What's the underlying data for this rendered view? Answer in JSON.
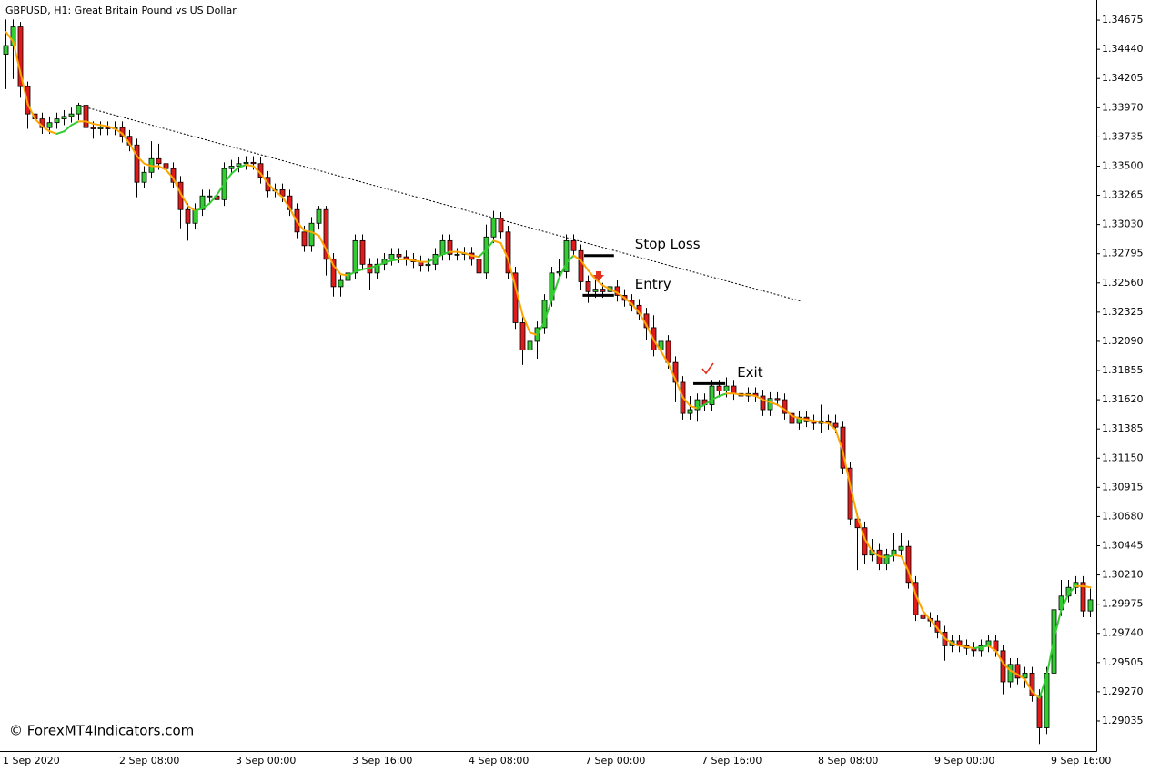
{
  "chart_data": {
    "type": "candlestick",
    "title": "GBPUSD, H1:  Great Britain Pound vs US Dollar",
    "categories": [
      "1 Sep 2020",
      null,
      null,
      null,
      null,
      null,
      null,
      null,
      null,
      null,
      null,
      null,
      null,
      null,
      null,
      null,
      "2 Sep 08:00",
      null,
      null,
      null,
      null,
      null,
      null,
      null,
      null,
      null,
      null,
      null,
      null,
      null,
      null,
      null,
      "3 Sep 00:00",
      null,
      null,
      null,
      null,
      null,
      null,
      null,
      null,
      null,
      null,
      null,
      null,
      null,
      null,
      null,
      "3 Sep 16:00",
      null,
      null,
      null,
      null,
      null,
      null,
      null,
      null,
      null,
      null,
      null,
      null,
      null,
      null,
      null,
      "4 Sep 08:00",
      null,
      null,
      null,
      null,
      null,
      null,
      null,
      null,
      null,
      null,
      null,
      null,
      null,
      null,
      null,
      "7 Sep 00:00",
      null,
      null,
      null,
      null,
      null,
      null,
      null,
      null,
      null,
      null,
      null,
      null,
      null,
      null,
      null,
      "7 Sep 16:00",
      null,
      null,
      null,
      null,
      null,
      null,
      null,
      null,
      null,
      null,
      null,
      null,
      null,
      null,
      null,
      "8 Sep 08:00",
      null,
      null,
      null,
      null,
      null,
      null,
      null,
      null,
      null,
      null,
      null,
      null,
      null,
      null,
      null,
      "9 Sep 00:00",
      null,
      null,
      null,
      null,
      null,
      null,
      null,
      null,
      null,
      null,
      null,
      null,
      null,
      null,
      null,
      "9 Sep 16:00",
      null,
      null,
      null,
      null,
      null
    ],
    "open": [
      1.344,
      1.3447,
      1.3462,
      1.3414,
      1.3392,
      1.3388,
      1.3381,
      1.3385,
      1.3388,
      1.339,
      1.3392,
      1.3399,
      1.3381,
      1.338,
      1.3381,
      1.338,
      1.3381,
      1.3374,
      1.3367,
      1.3337,
      1.3345,
      1.3356,
      1.3352,
      1.3348,
      1.3337,
      1.3315,
      1.3304,
      1.3315,
      1.3326,
      1.3326,
      1.3323,
      1.3348,
      1.335,
      1.3352,
      1.3353,
      1.3352,
      1.3341,
      1.333,
      1.3331,
      1.3326,
      1.3315,
      1.3297,
      1.3286,
      1.3304,
      1.3315,
      1.3275,
      1.3253,
      1.3258,
      1.3264,
      1.329,
      1.3271,
      1.3264,
      1.3271,
      1.3275,
      1.3279,
      1.3277,
      1.3275,
      1.3273,
      1.327,
      1.3271,
      1.3279,
      1.329,
      1.3279,
      1.3279,
      1.328,
      1.3275,
      1.3264,
      1.3293,
      1.3308,
      1.3297,
      1.3264,
      1.3224,
      1.3202,
      1.3209,
      1.322,
      1.3242,
      1.3264,
      1.3265,
      1.329,
      1.3282,
      1.3257,
      1.3249,
      1.3251,
      1.3249,
      1.3253,
      1.3246,
      1.3242,
      1.3238,
      1.3231,
      1.322,
      1.3202,
      1.3209,
      1.3192,
      1.3176,
      1.3151,
      1.3154,
      1.3162,
      1.3158,
      1.3173,
      1.3169,
      1.3173,
      1.3167,
      1.3165,
      1.3167,
      1.3165,
      1.3154,
      1.3163,
      1.3162,
      1.3151,
      1.3143,
      1.3148,
      1.3145,
      1.3143,
      1.3145,
      1.3143,
      1.314,
      1.3107,
      1.3066,
      1.3059,
      1.3037,
      1.3041,
      1.303,
      1.3037,
      1.3041,
      1.3044,
      1.3015,
      1.2989,
      1.2986,
      1.2984,
      1.2975,
      1.2964,
      1.2968,
      1.2964,
      1.2962,
      1.296,
      1.2964,
      1.2968,
      1.296,
      1.2935,
      1.2949,
      1.2938,
      1.2942,
      1.2924,
      1.2898,
      1.2942,
      1.2993,
      1.3004,
      1.3011,
      1.3015,
      1.2992
    ],
    "high": [
      1.3468,
      1.3468,
      1.3466,
      1.3418,
      1.3397,
      1.3393,
      1.339,
      1.3393,
      1.3395,
      1.3397,
      1.3401,
      1.3401,
      1.3386,
      1.3386,
      1.3386,
      1.3386,
      1.3386,
      1.3379,
      1.3372,
      1.335,
      1.337,
      1.3368,
      1.3362,
      1.3353,
      1.3342,
      1.332,
      1.332,
      1.3331,
      1.3331,
      1.3331,
      1.3353,
      1.3355,
      1.3357,
      1.3358,
      1.3358,
      1.3357,
      1.3346,
      1.3336,
      1.3336,
      1.3331,
      1.332,
      1.3302,
      1.3309,
      1.3318,
      1.3318,
      1.328,
      1.3263,
      1.3269,
      1.3295,
      1.3295,
      1.3276,
      1.3276,
      1.328,
      1.3284,
      1.3284,
      1.3282,
      1.328,
      1.3278,
      1.3276,
      1.3284,
      1.3295,
      1.3295,
      1.3284,
      1.3285,
      1.3285,
      1.328,
      1.3303,
      1.3314,
      1.3313,
      1.3302,
      1.3269,
      1.3229,
      1.3214,
      1.3225,
      1.3247,
      1.3269,
      1.3275,
      1.3295,
      1.3295,
      1.3287,
      1.3262,
      1.3262,
      1.3256,
      1.3258,
      1.3258,
      1.3251,
      1.3247,
      1.3243,
      1.3236,
      1.323,
      1.3232,
      1.3214,
      1.3197,
      1.3181,
      1.3165,
      1.3167,
      1.3167,
      1.3178,
      1.3178,
      1.318,
      1.3178,
      1.3172,
      1.3172,
      1.3172,
      1.317,
      1.3168,
      1.3168,
      1.3167,
      1.3156,
      1.3153,
      1.3153,
      1.315,
      1.3158,
      1.315,
      1.315,
      1.3145,
      1.3112,
      1.3071,
      1.3064,
      1.305,
      1.3046,
      1.3042,
      1.3055,
      1.3055,
      1.3049,
      1.302,
      1.2994,
      1.2991,
      1.2989,
      1.298,
      1.2973,
      1.2973,
      1.2969,
      1.2967,
      1.2969,
      1.2973,
      1.2973,
      1.2965,
      1.2954,
      1.2954,
      1.2947,
      1.2947,
      1.2929,
      1.2947,
      1.3011,
      1.3017,
      1.3017,
      1.302,
      1.302,
      1.301
    ],
    "low": [
      1.3412,
      1.342,
      1.3405,
      1.338,
      1.3375,
      1.3376,
      1.3376,
      1.338,
      1.3383,
      1.3385,
      1.3387,
      1.3376,
      1.3372,
      1.3375,
      1.3375,
      1.3375,
      1.3369,
      1.3362,
      1.3325,
      1.3332,
      1.334,
      1.3347,
      1.3343,
      1.3332,
      1.33,
      1.329,
      1.3299,
      1.331,
      1.3321,
      1.3316,
      1.3318,
      1.3343,
      1.3345,
      1.3347,
      1.3347,
      1.3336,
      1.3325,
      1.3325,
      1.3321,
      1.331,
      1.3292,
      1.3281,
      1.3281,
      1.3299,
      1.3262,
      1.3245,
      1.3245,
      1.3248,
      1.3259,
      1.3266,
      1.325,
      1.3259,
      1.3266,
      1.327,
      1.3272,
      1.327,
      1.3268,
      1.3265,
      1.3265,
      1.3266,
      1.3274,
      1.3274,
      1.3274,
      1.3274,
      1.327,
      1.3259,
      1.3259,
      1.3288,
      1.3292,
      1.3259,
      1.3219,
      1.319,
      1.318,
      1.3195,
      1.3215,
      1.3237,
      1.3259,
      1.326,
      1.3277,
      1.325,
      1.324,
      1.3244,
      1.3244,
      1.3244,
      1.3241,
      1.3237,
      1.3233,
      1.3226,
      1.321,
      1.3197,
      1.3197,
      1.3187,
      1.316,
      1.3146,
      1.3146,
      1.3145,
      1.3153,
      1.3153,
      1.3164,
      1.3164,
      1.3162,
      1.316,
      1.316,
      1.316,
      1.3149,
      1.3149,
      1.3157,
      1.3146,
      1.3138,
      1.3138,
      1.314,
      1.3138,
      1.3135,
      1.3138,
      1.3135,
      1.3102,
      1.3061,
      1.3025,
      1.303,
      1.3032,
      1.3025,
      1.3025,
      1.3032,
      1.3036,
      1.301,
      1.2984,
      1.2981,
      1.2979,
      1.297,
      1.2952,
      1.2959,
      1.2959,
      1.2957,
      1.2955,
      1.2955,
      1.2959,
      1.2955,
      1.2925,
      1.293,
      1.2933,
      1.293,
      1.2919,
      1.2885,
      1.2893,
      1.2937,
      1.2988,
      1.2999,
      1.3006,
      1.2987,
      1.2987
    ],
    "close": [
      1.3447,
      1.3462,
      1.3414,
      1.3392,
      1.3388,
      1.3381,
      1.3385,
      1.3388,
      1.339,
      1.3392,
      1.3399,
      1.3381,
      1.338,
      1.3381,
      1.338,
      1.3381,
      1.3374,
      1.3367,
      1.3337,
      1.3345,
      1.3356,
      1.3352,
      1.3348,
      1.3337,
      1.3315,
      1.3304,
      1.3315,
      1.3326,
      1.3326,
      1.3323,
      1.3348,
      1.335,
      1.3352,
      1.3353,
      1.3352,
      1.3341,
      1.333,
      1.3331,
      1.3326,
      1.3315,
      1.3297,
      1.3286,
      1.3304,
      1.3315,
      1.3275,
      1.3253,
      1.3258,
      1.3264,
      1.329,
      1.3271,
      1.3264,
      1.3271,
      1.3275,
      1.3279,
      1.3277,
      1.3275,
      1.3273,
      1.327,
      1.3271,
      1.3279,
      1.329,
      1.3279,
      1.3279,
      1.328,
      1.3275,
      1.3264,
      1.3293,
      1.3308,
      1.3297,
      1.3264,
      1.3224,
      1.3202,
      1.3209,
      1.322,
      1.3242,
      1.3264,
      1.3265,
      1.329,
      1.3282,
      1.3257,
      1.3249,
      1.3251,
      1.3249,
      1.3253,
      1.3246,
      1.3242,
      1.3238,
      1.3231,
      1.322,
      1.3202,
      1.3209,
      1.3192,
      1.3176,
      1.3151,
      1.3154,
      1.3162,
      1.3158,
      1.3173,
      1.3169,
      1.3173,
      1.3167,
      1.3165,
      1.3167,
      1.3165,
      1.3154,
      1.3163,
      1.3162,
      1.3151,
      1.3143,
      1.3148,
      1.3145,
      1.3143,
      1.3145,
      1.3143,
      1.314,
      1.3107,
      1.3066,
      1.3059,
      1.3037,
      1.3041,
      1.303,
      1.3037,
      1.3041,
      1.3044,
      1.3015,
      1.2989,
      1.2986,
      1.2984,
      1.2975,
      1.2964,
      1.2968,
      1.2964,
      1.2962,
      1.296,
      1.2964,
      1.2968,
      1.296,
      1.2935,
      1.2949,
      1.2938,
      1.2942,
      1.2924,
      1.2898,
      1.2942,
      1.2993,
      1.3004,
      1.3011,
      1.3015,
      1.2992,
      1.3001
    ],
    "up_color": "#33cc33",
    "down_color": "#e01b1b",
    "indicator": {
      "up_color": "#33cc33",
      "down_color": "#ffa500",
      "values": [
        1.3458,
        1.345,
        1.3425,
        1.34,
        1.3388,
        1.3382,
        1.3378,
        1.3376,
        1.3378,
        1.3383,
        1.3386,
        1.3386,
        1.3384,
        1.3383,
        1.3382,
        1.338,
        1.3376,
        1.3368,
        1.3358,
        1.3352,
        1.335,
        1.335,
        1.3347,
        1.334,
        1.3328,
        1.3318,
        1.3314,
        1.3316,
        1.332,
        1.3327,
        1.3336,
        1.3344,
        1.3349,
        1.3351,
        1.335,
        1.3344,
        1.3336,
        1.333,
        1.3325,
        1.3316,
        1.3305,
        1.3298,
        1.3297,
        1.3294,
        1.3283,
        1.327,
        1.3263,
        1.3262,
        1.3265,
        1.3267,
        1.3268,
        1.327,
        1.3272,
        1.3274,
        1.3275,
        1.3275,
        1.3274,
        1.3273,
        1.3273,
        1.3276,
        1.3279,
        1.3281,
        1.3281,
        1.328,
        1.3278,
        1.3277,
        1.3283,
        1.329,
        1.3288,
        1.3275,
        1.3253,
        1.323,
        1.3216,
        1.3214,
        1.3225,
        1.3243,
        1.326,
        1.3272,
        1.3278,
        1.3274,
        1.3266,
        1.3259,
        1.3254,
        1.3251,
        1.3248,
        1.3244,
        1.3239,
        1.3232,
        1.3222,
        1.321,
        1.3201,
        1.3191,
        1.3178,
        1.3164,
        1.3157,
        1.3155,
        1.3158,
        1.3162,
        1.3165,
        1.3167,
        1.3167,
        1.3166,
        1.3166,
        1.3165,
        1.3162,
        1.316,
        1.3158,
        1.3154,
        1.3149,
        1.3147,
        1.3146,
        1.3145,
        1.3144,
        1.3143,
        1.3138,
        1.312,
        1.3093,
        1.3068,
        1.305,
        1.304,
        1.3036,
        1.3035,
        1.3037,
        1.3036,
        1.3024,
        1.3005,
        1.2992,
        1.2985,
        1.2978,
        1.297,
        1.2966,
        1.2964,
        1.2963,
        1.2962,
        1.2963,
        1.2964,
        1.296,
        1.295,
        1.2944,
        1.2941,
        1.2937,
        1.2927,
        1.2922,
        1.294,
        1.297,
        1.2993,
        1.3006,
        1.3012,
        1.3012,
        1.3011
      ]
    },
    "trendline": {
      "x": [
        10,
        109.5
      ],
      "y": [
        1.3399,
        1.3241
      ]
    },
    "levels": [
      {
        "label": "Stop Loss",
        "value": 1.3278,
        "x": [
          79.5,
          83.6
        ]
      },
      {
        "label": "Entry",
        "value": 1.3246,
        "x": [
          79.3,
          83.6
        ]
      },
      {
        "label": "Exit",
        "value": 1.3175,
        "x": [
          94.5,
          98.9
        ]
      }
    ],
    "ylim": [
      1.28793,
      1.34822
    ],
    "yticks": [
      1.34675,
      {
        "value": 1.3444,
        "label": "1.34440"
      },
      1.34205,
      {
        "value": 1.3397,
        "label": "1.33970"
      },
      1.33735,
      {
        "value": 1.335,
        "label": "1.33500"
      },
      1.33265,
      {
        "value": 1.3303,
        "label": "1.33030"
      },
      1.32795,
      {
        "value": 1.3256,
        "label": "1.32560"
      },
      1.32325,
      {
        "value": 1.3209,
        "label": "1.32090"
      },
      1.31855,
      {
        "value": 1.3162,
        "label": "1.31620"
      },
      1.31385,
      {
        "value": 1.3115,
        "label": "1.31150"
      },
      1.30915,
      {
        "value": 1.3068,
        "label": "1.30680"
      },
      1.30445,
      {
        "value": 1.3021,
        "label": "1.30210"
      },
      1.29975,
      {
        "value": 1.2974,
        "label": "1.29740"
      },
      1.29505,
      {
        "value": 1.2927,
        "label": "1.29270"
      },
      1.29035
    ]
  },
  "watermark": "© ForexMT4Indicators.com"
}
